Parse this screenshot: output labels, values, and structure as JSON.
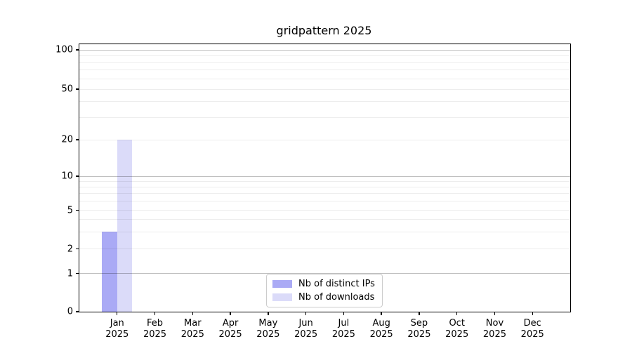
{
  "chart_data": {
    "type": "bar",
    "title": "gridpattern 2025",
    "x_categories": [
      "Jan",
      "Feb",
      "Mar",
      "Apr",
      "May",
      "Jun",
      "Jul",
      "Aug",
      "Sep",
      "Oct",
      "Nov",
      "Dec"
    ],
    "x_year": "2025",
    "series": [
      {
        "name": "Nb of distinct IPs",
        "color": "#aaaaf5",
        "values": [
          3,
          0,
          0,
          0,
          0,
          0,
          0,
          0,
          0,
          0,
          0,
          0
        ]
      },
      {
        "name": "Nb of downloads",
        "color": "#dbdbf9",
        "values": [
          20,
          0,
          0,
          0,
          0,
          0,
          0,
          0,
          0,
          0,
          0,
          0
        ]
      }
    ],
    "y_ticks": [
      0,
      1,
      2,
      5,
      10,
      20,
      50,
      100
    ],
    "y_major_gridlines": [
      1,
      10,
      100
    ],
    "y_minor_gridlines": [
      2,
      3,
      4,
      5,
      6,
      7,
      8,
      9,
      20,
      30,
      40,
      50,
      60,
      70,
      80,
      90
    ],
    "y_scale": "log above 1, linear 0-1",
    "ylim": [
      0,
      110
    ],
    "grid": true,
    "legend": {
      "position": "lower center",
      "entries": [
        "Nb of distinct IPs",
        "Nb of downloads"
      ]
    }
  }
}
